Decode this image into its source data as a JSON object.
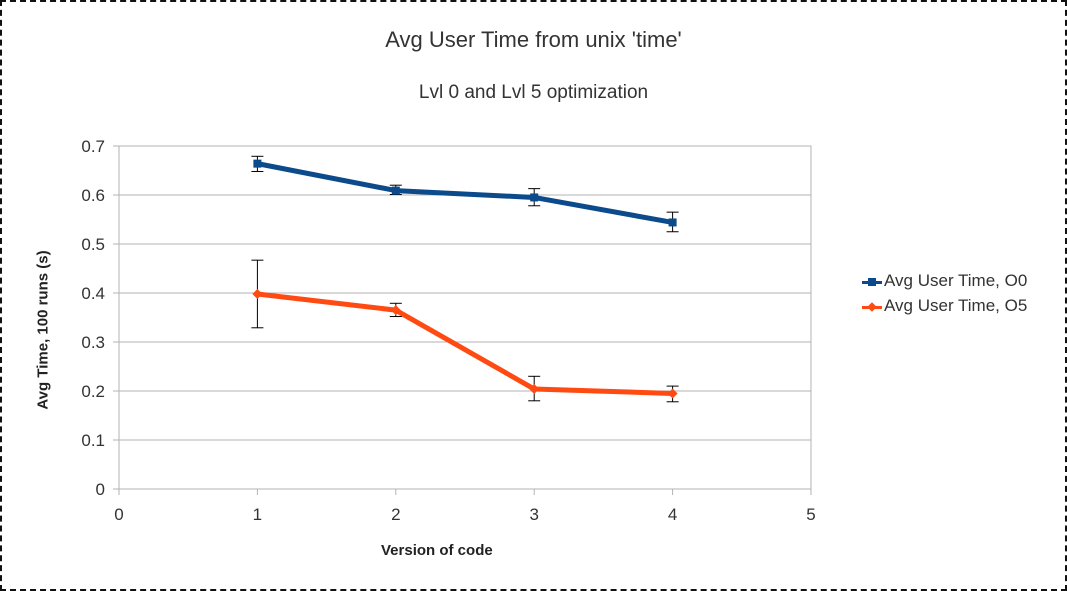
{
  "chart_data": {
    "type": "line",
    "title": "Avg User Time from unix 'time'",
    "subtitle": "Lvl 0 and Lvl 5 optimization",
    "xlabel": "Version of code",
    "ylabel": "Avg Time, 100 runs (s)",
    "xlim": [
      0,
      5
    ],
    "ylim": [
      0,
      0.7
    ],
    "x_ticks": [
      0,
      1,
      2,
      3,
      4,
      5
    ],
    "y_ticks": [
      0,
      0.1,
      0.2,
      0.3,
      0.4,
      0.5,
      0.6,
      0.7
    ],
    "grid": "horizontal",
    "legend_position": "right",
    "series": [
      {
        "name": "Avg User Time, O0",
        "color": "#0b4a8b",
        "marker": "square",
        "x": [
          1,
          2,
          3,
          4
        ],
        "y": [
          0.664,
          0.609,
          0.595,
          0.544
        ],
        "error_low": [
          0.648,
          0.601,
          0.578,
          0.525
        ],
        "error_high": [
          0.679,
          0.62,
          0.613,
          0.565
        ]
      },
      {
        "name": "Avg User Time, O5",
        "color": "#ff4a12",
        "marker": "diamond",
        "x": [
          1,
          2,
          3,
          4
        ],
        "y": [
          0.398,
          0.365,
          0.204,
          0.195
        ],
        "error_low": [
          0.329,
          0.352,
          0.18,
          0.178
        ],
        "error_high": [
          0.467,
          0.379,
          0.23,
          0.21
        ]
      }
    ]
  }
}
